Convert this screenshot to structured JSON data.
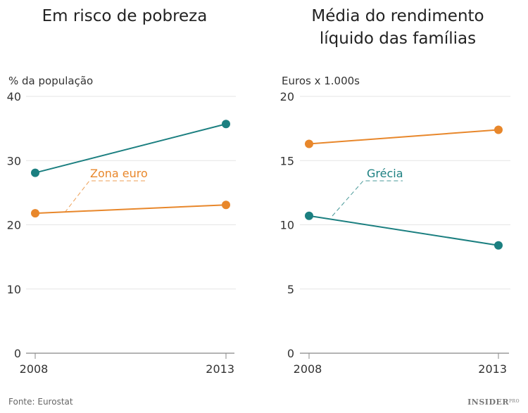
{
  "colors": {
    "teal": "#1b7f80",
    "orange": "#e8872b",
    "grid": "#e6e6e6",
    "axis": "#888888"
  },
  "source": "Fonte: Eurostat",
  "logo": "INSIDER PRO",
  "chart_data": [
    {
      "type": "line",
      "title": "Em risco de pobreza",
      "ylabel": "% da população",
      "x": [
        "2008",
        "2013"
      ],
      "ylim": [
        0,
        40
      ],
      "yticks": [
        "0",
        "10",
        "20",
        "30",
        "40"
      ],
      "grid": true,
      "series": [
        {
          "color": "teal",
          "values": [
            28.1,
            35.7
          ]
        },
        {
          "name": "Zona euro",
          "color": "orange",
          "values": [
            21.8,
            23.1
          ]
        }
      ],
      "annotation": "Zona euro"
    },
    {
      "type": "line",
      "title": [
        "Média do rendimento",
        "líquido das famílias"
      ],
      "ylabel": "Euros x 1.000s",
      "x": [
        "2008",
        "2013"
      ],
      "ylim": [
        0,
        20
      ],
      "yticks": [
        "0",
        "5",
        "10",
        "15",
        "20"
      ],
      "grid": true,
      "series": [
        {
          "color": "orange",
          "values": [
            16.3,
            17.4
          ]
        },
        {
          "name": "Grécia",
          "color": "teal",
          "values": [
            10.7,
            8.4
          ]
        }
      ],
      "annotation": "Grécia"
    }
  ]
}
